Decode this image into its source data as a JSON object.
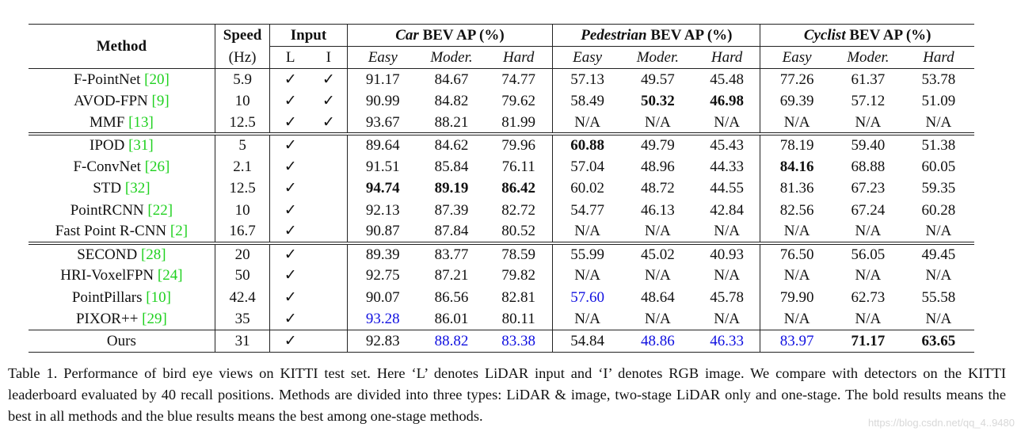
{
  "header": {
    "method": "Method",
    "speed": "Speed",
    "speed_unit": "(Hz)",
    "input": "Input",
    "input_l": "L",
    "input_i": "I",
    "groups": [
      {
        "italic": "Car",
        "rest": " BEV AP (%)"
      },
      {
        "italic": "Pedestrian",
        "rest": " BEV AP (%)"
      },
      {
        "italic": "Cyclist",
        "rest": " BEV AP (%)"
      }
    ],
    "levels": [
      "Easy",
      "Moder.",
      "Hard"
    ]
  },
  "sections": [
    [
      {
        "name": "F-PointNet ",
        "ref": "[20]",
        "speed": "5.9",
        "L": "✓",
        "I": "✓",
        "v": [
          "91.17",
          "84.67",
          "74.77",
          "57.13",
          "49.57",
          "45.48",
          "77.26",
          "61.37",
          "53.78"
        ],
        "bold": [],
        "blue": []
      },
      {
        "name": "AVOD-FPN ",
        "ref": "[9]",
        "speed": "10",
        "L": "✓",
        "I": "✓",
        "v": [
          "90.99",
          "84.82",
          "79.62",
          "58.49",
          "50.32",
          "46.98",
          "69.39",
          "57.12",
          "51.09"
        ],
        "bold": [
          4,
          5
        ],
        "blue": []
      },
      {
        "name": "MMF ",
        "ref": "[13]",
        "speed": "12.5",
        "L": "✓",
        "I": "✓",
        "v": [
          "93.67",
          "88.21",
          "81.99",
          "N/A",
          "N/A",
          "N/A",
          "N/A",
          "N/A",
          "N/A"
        ],
        "bold": [],
        "blue": []
      }
    ],
    [
      {
        "name": "IPOD ",
        "ref": "[31]",
        "speed": "5",
        "L": "✓",
        "I": "",
        "v": [
          "89.64",
          "84.62",
          "79.96",
          "60.88",
          "49.79",
          "45.43",
          "78.19",
          "59.40",
          "51.38"
        ],
        "bold": [
          3
        ],
        "blue": []
      },
      {
        "name": "F-ConvNet ",
        "ref": "[26]",
        "speed": "2.1",
        "L": "✓",
        "I": "",
        "v": [
          "91.51",
          "85.84",
          "76.11",
          "57.04",
          "48.96",
          "44.33",
          "84.16",
          "68.88",
          "60.05"
        ],
        "bold": [
          6
        ],
        "blue": []
      },
      {
        "name": "STD ",
        "ref": "[32]",
        "speed": "12.5",
        "L": "✓",
        "I": "",
        "v": [
          "94.74",
          "89.19",
          "86.42",
          "60.02",
          "48.72",
          "44.55",
          "81.36",
          "67.23",
          "59.35"
        ],
        "bold": [
          0,
          1,
          2
        ],
        "blue": []
      },
      {
        "name": "PointRCNN ",
        "ref": "[22]",
        "speed": "10",
        "L": "✓",
        "I": "",
        "v": [
          "92.13",
          "87.39",
          "82.72",
          "54.77",
          "46.13",
          "42.84",
          "82.56",
          "67.24",
          "60.28"
        ],
        "bold": [],
        "blue": []
      },
      {
        "name": "Fast Point R-CNN ",
        "ref": "[2]",
        "speed": "16.7",
        "L": "✓",
        "I": "",
        "v": [
          "90.87",
          "87.84",
          "80.52",
          "N/A",
          "N/A",
          "N/A",
          "N/A",
          "N/A",
          "N/A"
        ],
        "bold": [],
        "blue": []
      }
    ],
    [
      {
        "name": "SECOND ",
        "ref": "[28]",
        "speed": "20",
        "L": "✓",
        "I": "",
        "v": [
          "89.39",
          "83.77",
          "78.59",
          "55.99",
          "45.02",
          "40.93",
          "76.50",
          "56.05",
          "49.45"
        ],
        "bold": [],
        "blue": []
      },
      {
        "name": "HRI-VoxelFPN ",
        "ref": "[24]",
        "speed": "50",
        "L": "✓",
        "I": "",
        "v": [
          "92.75",
          "87.21",
          "79.82",
          "N/A",
          "N/A",
          "N/A",
          "N/A",
          "N/A",
          "N/A"
        ],
        "bold": [],
        "blue": []
      },
      {
        "name": "PointPillars ",
        "ref": "[10]",
        "speed": "42.4",
        "L": "✓",
        "I": "",
        "v": [
          "90.07",
          "86.56",
          "82.81",
          "57.60",
          "48.64",
          "45.78",
          "79.90",
          "62.73",
          "55.58"
        ],
        "bold": [],
        "blue": [
          3
        ]
      },
      {
        "name": "PIXOR++ ",
        "ref": "[29]",
        "speed": "35",
        "L": "✓",
        "I": "",
        "v": [
          "93.28",
          "86.01",
          "80.11",
          "N/A",
          "N/A",
          "N/A",
          "N/A",
          "N/A",
          "N/A"
        ],
        "bold": [],
        "blue": [
          0
        ]
      }
    ],
    [
      {
        "name": "Ours",
        "ref": "",
        "speed": "31",
        "L": "✓",
        "I": "",
        "v": [
          "92.83",
          "88.82",
          "83.38",
          "54.84",
          "48.86",
          "46.33",
          "83.97",
          "71.17",
          "63.65"
        ],
        "bold": [
          7,
          8
        ],
        "blue": [
          1,
          2,
          4,
          5,
          6
        ]
      }
    ]
  ],
  "caption": "Table 1. Performance of bird eye views on KITTI test set. Here ‘L’ denotes LiDAR input and ‘I’ denotes RGB image. We compare with detectors on the KITTI leaderboard evaluated by 40 recall positions. Methods are divided into three types: LiDAR & image, two-stage LiDAR only and one-stage. The bold results means the best in all methods and the blue results means the best among one-stage methods.",
  "watermark": "https://blog.csdn.net/qq_4..9480",
  "colors": {
    "ref_green": "#1fd11f",
    "highlight_blue": "#1010e0"
  }
}
